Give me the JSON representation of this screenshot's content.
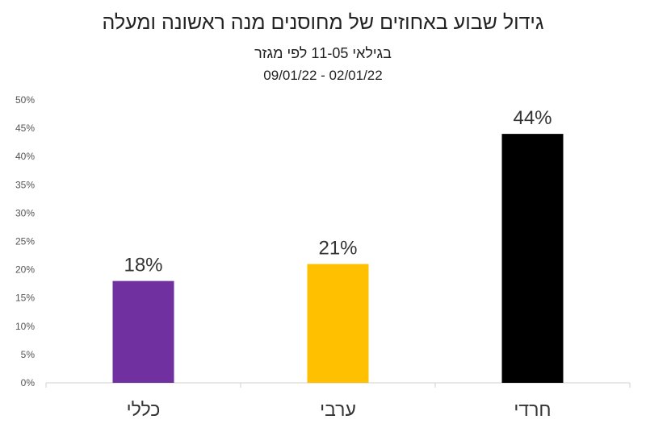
{
  "chart_data": {
    "type": "bar",
    "title": "גידול שבוע באחוזים של מחוסנים מנה ראשונה ומעלה",
    "subtitle": "בגילאי 11-05 לפי מגזר",
    "date_range": "09/01/22 - 02/01/22",
    "categories": [
      "כללי",
      "ערבי",
      "חרדי"
    ],
    "values": [
      18,
      21,
      44
    ],
    "data_labels": [
      "18%",
      "21%",
      "44%"
    ],
    "bar_colors": [
      "#7030a0",
      "#ffc000",
      "#000000"
    ],
    "ylim": [
      0,
      50
    ],
    "yticks": [
      "0%",
      "5%",
      "10%",
      "15%",
      "20%",
      "25%",
      "30%",
      "35%",
      "40%",
      "45%",
      "50%"
    ],
    "xlabel": "",
    "ylabel": "",
    "grid": false,
    "legend": "none"
  }
}
